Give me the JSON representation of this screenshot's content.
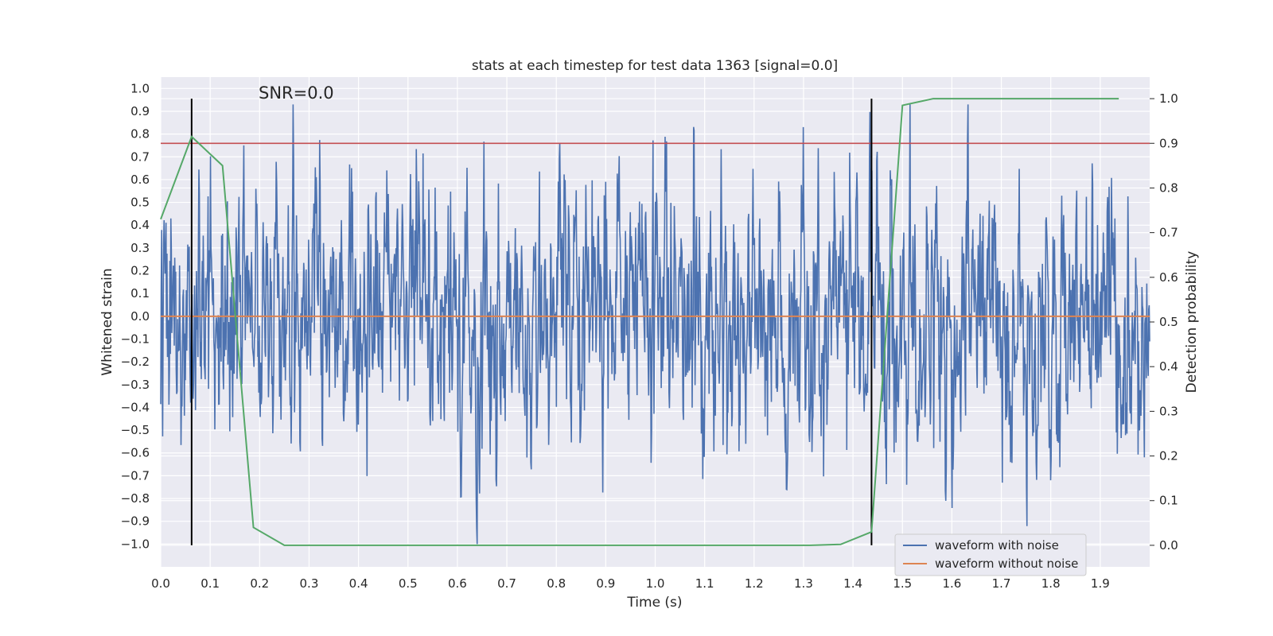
{
  "chart_data": {
    "type": "line",
    "title": "stats at each timestep for test data 1363 [signal=0.0]",
    "xlabel": "Time (s)",
    "ylabel": "Whitened strain",
    "y2label": "Detection probability",
    "annotation": "SNR=0.0",
    "xlim": [
      0.0,
      2.0
    ],
    "ylim": [
      -1.1,
      1.05
    ],
    "y2lim": [
      -0.0482,
      1.0482
    ],
    "xticks": [
      "0.0",
      "0.1",
      "0.2",
      "0.3",
      "0.4",
      "0.5",
      "0.6",
      "0.7",
      "0.8",
      "0.9",
      "1.0",
      "1.1",
      "1.2",
      "1.3",
      "1.4",
      "1.5",
      "1.6",
      "1.7",
      "1.8",
      "1.9"
    ],
    "yticks": [
      "−1.0",
      "−0.9",
      "−0.8",
      "−0.7",
      "−0.6",
      "−0.5",
      "−0.4",
      "−0.3",
      "−0.2",
      "−0.1",
      "0.0",
      "0.1",
      "0.2",
      "0.3",
      "0.4",
      "0.5",
      "0.6",
      "0.7",
      "0.8",
      "0.9",
      "1.0"
    ],
    "y2ticks": [
      "0.0",
      "0.1",
      "0.2",
      "0.3",
      "0.4",
      "0.5",
      "0.6",
      "0.7",
      "0.8",
      "0.9",
      "1.0"
    ],
    "legend": {
      "location": "lower-right",
      "entries": [
        "waveform with noise",
        "waveform without noise"
      ]
    },
    "colors": {
      "noise": "#4c72b0",
      "clean": "#dd8452",
      "prob": "#55a868",
      "threshold": "#c44e52",
      "marker": "#000000",
      "background": "#eaeaf2",
      "grid": "#ffffff"
    },
    "series": [
      {
        "name": "waveform with noise",
        "axis": "left",
        "n_samples": 2048,
        "x_start": 0.0,
        "x_end": 2.0,
        "approx_std": 0.3,
        "approx_min": -1.0,
        "approx_max": 0.93
      },
      {
        "name": "waveform without noise",
        "axis": "left",
        "x": [
          0.0,
          2.0
        ],
        "y": [
          0.0,
          0.0
        ]
      },
      {
        "name": "detection probability",
        "axis": "right",
        "x": [
          0.0,
          0.0625,
          0.125,
          0.1875,
          0.25,
          0.3125,
          0.375,
          0.4375,
          0.5,
          0.5625,
          0.625,
          0.6875,
          0.75,
          0.8125,
          0.875,
          0.9375,
          1.0,
          1.0625,
          1.125,
          1.1875,
          1.25,
          1.3125,
          1.375,
          1.4375,
          1.5,
          1.5625,
          1.625,
          1.6875,
          1.75,
          1.8125,
          1.875,
          1.9375
        ],
        "y": [
          0.73,
          0.915,
          0.85,
          0.04,
          0.0,
          0.0,
          0.0,
          0.0,
          0.0,
          0.0,
          0.0,
          0.0,
          0.0,
          0.0,
          0.0,
          0.0,
          0.0,
          0.0,
          0.0,
          0.0,
          0.0,
          0.0,
          0.002,
          0.03,
          0.985,
          1.0,
          1.0,
          1.0,
          1.0,
          1.0,
          1.0,
          1.0
        ]
      }
    ],
    "threshold": {
      "axis": "right",
      "value": 0.9
    },
    "vertical_markers": {
      "x": [
        0.0625,
        1.4375
      ],
      "y_range_right": [
        0.0,
        1.0
      ]
    }
  }
}
